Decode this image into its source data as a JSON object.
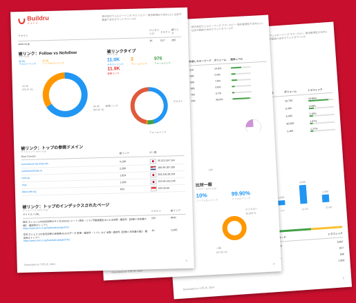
{
  "page1": {
    "logo_text": "Buildru",
    "logo_sub": "ビルドル",
    "company": "株式会社ウェルビーイング テクノロジー 東京都港区六本木3-2-1 住友不動産六本木グランドタワー17F",
    "domain_col": "ドメイン",
    "domain": "sorio.co.jp",
    "head_metrics": [
      "バックリンク",
      "ドメイン",
      "被リンク"
    ],
    "head_values": [
      "1K",
      "517",
      "205"
    ],
    "follow_title": "被リンク：Follow vs Nofollow",
    "follow_sub": "sorio.co.jp",
    "follow_legend": [
      {
        "label": "フォローリンク",
        "value": "96.9K",
        "color": "#2196f3"
      },
      {
        "label": "ノーフォローリンク",
        "value": "42.4K",
        "color": "#ff9800"
      }
    ],
    "follow_pct": [
      "(66.06 %)",
      "(33.47 %)"
    ],
    "type_title": "被リンクタイプ",
    "type_sub": "sorio.co.jp",
    "type_stats": [
      {
        "value": "11.0K",
        "label": "テキストリンク",
        "color": "#2196f3"
      },
      {
        "value": "3",
        "label": "フレームリンク",
        "color": "#ff9800"
      },
      {
        "value": "976",
        "label": "フォームリンク",
        "color": "#43a047"
      },
      {
        "value": "11.9K",
        "label": "画像リンク",
        "color": "#e53935"
      }
    ],
    "type_donut_labels": [
      "画像リンク",
      "テキスト",
      "フォームリンク"
    ],
    "domains_title": "被リンク：トップの参照ドメイン",
    "domains_sub": "ボトムリンク sorio.co.jp",
    "domains_cols": [
      "Root Domain",
      "被リンク",
      "IP / 国"
    ],
    "domains": [
      {
        "name": "ecommerce-hp.shop.net",
        "links": "4,108",
        "ip": "35.213.167.164",
        "flag": "jp"
      },
      {
        "name": "suhanaoretmatu.nl",
        "links": "2,289",
        "ip": "185.99.187.200",
        "flag": "nl"
      },
      {
        "name": "sorio.jp",
        "links": "1,824",
        "ip": "202.218.28.194",
        "flag": "jp"
      },
      {
        "name": "m.jp",
        "links": "1,683",
        "ip": "219.94.162.148",
        "flag": "jp"
      },
      {
        "name": "daun.web.sg",
        "links": "834",
        "ip": "203.29.66.",
        "flag": "sg"
      }
    ],
    "pages_title": "被リンク：トップのインデックスされたページ",
    "pages_sub": "ボトムリンク sorio.co.jp",
    "pages_cols": [
      "タイトル / URL",
      "ドメイン",
      "被リンク"
    ],
    "pages": [
      {
        "title": "株式 エシェリコの住宅診断のサイズ(100m)シャート (埼玉・シャ) 不動産鑑定士による診断 - 鑑定所 【記録と日本最大級】- 鑑定所のトップへ",
        "url": "https://www.sorio.co.jp/baiekyaku/page/3761",
        "domain": "163",
        "links": "8641"
      },
      {
        "title": "住宅 エシェリコの住宅診断の床価格の(1m²)データ 駐車・鑑定所・トイレ など 全国 - 鑑定所【記録と日本最大級】- 鑑定所のトップへ",
        "url": "https://www.sorio.co.jp/baiekyaku/page/3763",
        "domain": "46",
        "links": "5,095"
      }
    ],
    "footer": "Generated on 十月 25, 2024",
    "page_no": "3"
  },
  "page2": {
    "company": "株式会社ウェルビーイング テクノロジー 東京都港区六本木3-2-1 住友不動産六本木グランドタワー17F",
    "cols": [
      "外部したキーワード",
      "ボリューム",
      "競争レベル"
    ],
    "rows": [
      {
        "k": "11K",
        "v": "14.6%",
        "fill": 0.55
      },
      {
        "k": "905",
        "v": "0.9%",
        "fill": 0.2
      },
      {
        "k": "595",
        "v": "7.8%",
        "fill": 0.3
      },
      {
        "k": "895",
        "v": "0.8%",
        "fill": 0.15
      },
      {
        "k": "763",
        "v": "0.7%",
        "fill": 0.12
      },
      {
        "k": "14K",
        "v": "85.6%",
        "fill": 0.9
      }
    ],
    "axis_label": "100",
    "ratio_title": "比対一般",
    "ratio_sub": "フォロー sorio.co.jp",
    "ratio_stats": [
      {
        "value": "10%",
        "label": "ノーフォロー/リンク"
      },
      {
        "value": "99.90%",
        "label": "ドフォローリンク"
      }
    ],
    "ratio_labels": [
      "ドフォロー",
      "一般"
    ],
    "ratio_values": [
      "10,000 %",
      "(97.09 %)"
    ],
    "footer": "Generated on 十月 25, 2024",
    "page_no": "4"
  },
  "page3": {
    "company": "株式会社ウェルビーイング テクノロジー 東京都港区六本木3-2-1 住友不動産六本木グランドタワー17F",
    "cols": [
      "検索順位",
      "ボリューム",
      "トラフィック"
    ],
    "rows": [
      {
        "r": "1",
        "v": "20,700",
        "t": "18.65%",
        "fill": 0.8
      },
      {
        "r": "2",
        "v": "5,400",
        "t": "3.09%",
        "fill": 0.2
      },
      {
        "r": "3",
        "v": "5,400",
        "t": "2.18%",
        "fill": 0.15
      },
      {
        "r": "4",
        "v": "60,500",
        "t": "1.67%",
        "fill": 0.12
      },
      {
        "r": "5",
        "v": "2,400",
        "t": "1.27%",
        "fill": 0.1
      }
    ],
    "bar_labels": [
      "1,000",
      "4,000",
      "1,000"
    ],
    "bar_values": [
      0.15,
      0.55,
      0.22
    ],
    "bar_axis": [
      "1-4",
      "11-20",
      "21-50"
    ],
    "kw_cols": [
      "キーワード",
      "トラフィック"
    ],
    "kw_rows": [
      {
        "v": "20,700",
        "t": "3,857"
      },
      {
        "v": "7.6K",
        "t": "827"
      },
      {
        "v": "5,400",
        "t": "506"
      },
      {
        "v": "1.8K",
        "t": "1,900"
      }
    ],
    "footer": "Generated on 十月 25, 2024",
    "page_no": "5"
  }
}
